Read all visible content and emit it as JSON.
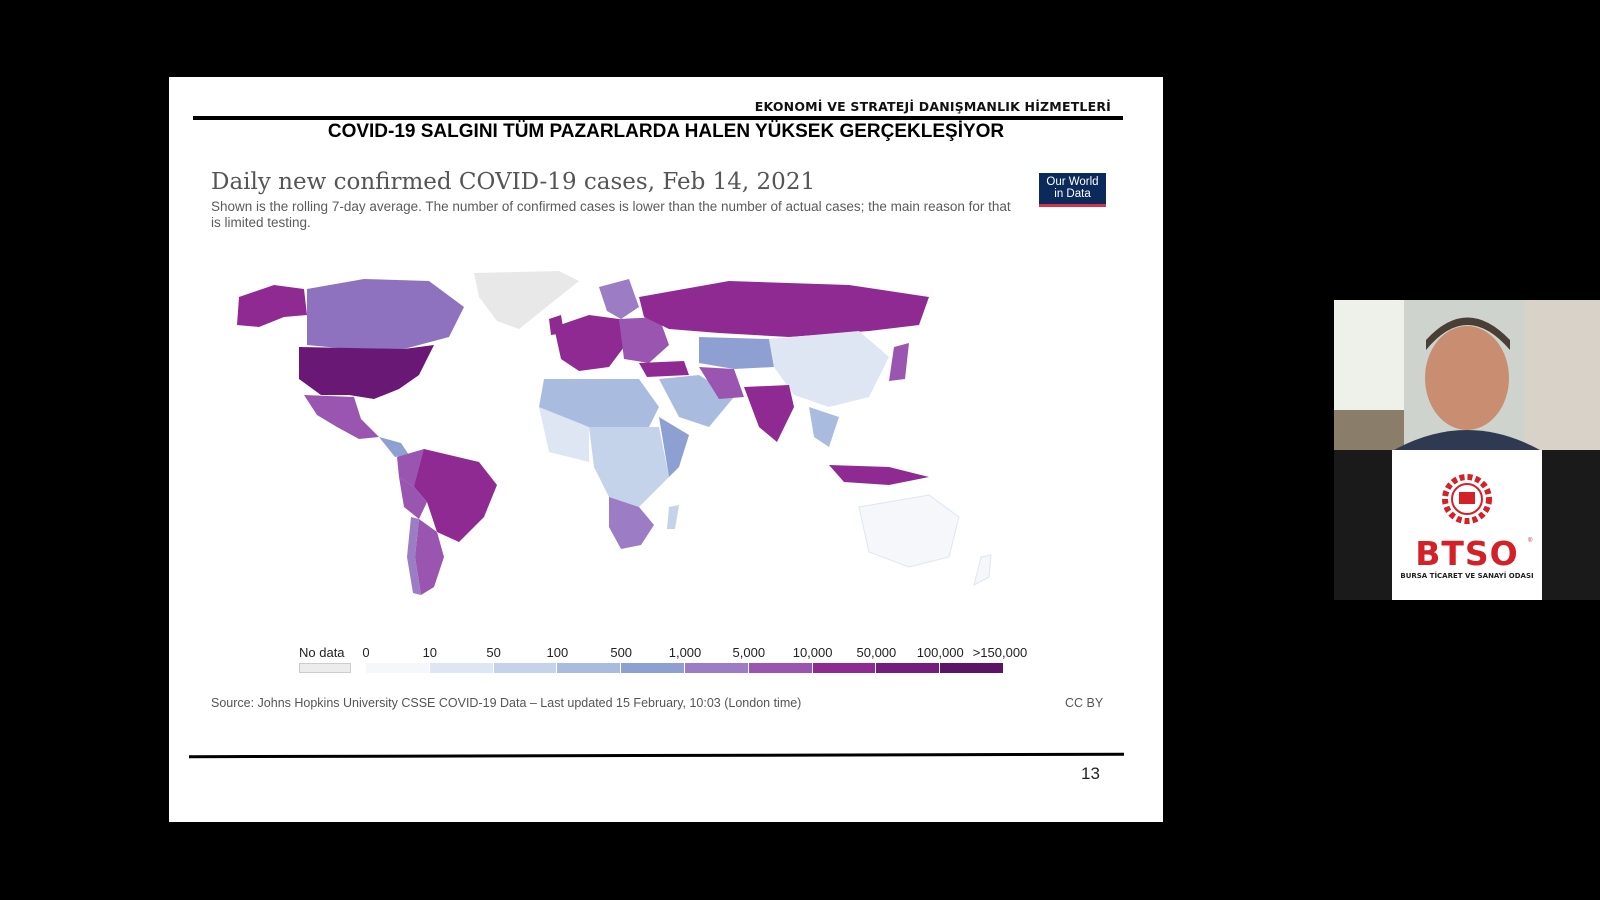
{
  "slide": {
    "department": "EKONOMİ VE STRATEJİ DANIŞMANLIK HİZMETLERİ",
    "headline": "COVID-19 SALGINI TÜM PAZARLARDA HALEN YÜKSEK GERÇEKLEŞİYOR",
    "page_number": "13"
  },
  "chart": {
    "title": "Daily new confirmed COVID-19 cases, Feb 14, 2021",
    "subtitle": "Shown is the rolling 7-day average. The number of confirmed cases is lower than the number of actual cases; the main reason for that is limited testing.",
    "logo_line1": "Our World",
    "logo_line2": "in Data",
    "source": "Source: Johns Hopkins University CSSE COVID-19 Data – Last updated 15 February, 10:03 (London time)",
    "license": "CC BY"
  },
  "legend": {
    "no_data_label": "No data",
    "no_data_color": "#ececec",
    "bins": [
      {
        "label": "0",
        "color": "#f5f7fb"
      },
      {
        "label": "10",
        "color": "#dde6f2"
      },
      {
        "label": "50",
        "color": "#c4d3ea"
      },
      {
        "label": "100",
        "color": "#a9bce0"
      },
      {
        "label": "500",
        "color": "#8e9fd2"
      },
      {
        "label": "1,000",
        "color": "#9c7cc4"
      },
      {
        "label": "5,000",
        "color": "#9a55b0"
      },
      {
        "label": "10,000",
        "color": "#8f2a92"
      },
      {
        "label": "50,000",
        "color": "#741d7c"
      },
      {
        "label": "100,000",
        "color": "#5b1466"
      }
    ],
    "end_label": ">150,000"
  },
  "branding": {
    "name": "BTSO",
    "subtitle": "BURSA TİCARET VE SANAYİ ODASI",
    "color": "#d42027"
  }
}
